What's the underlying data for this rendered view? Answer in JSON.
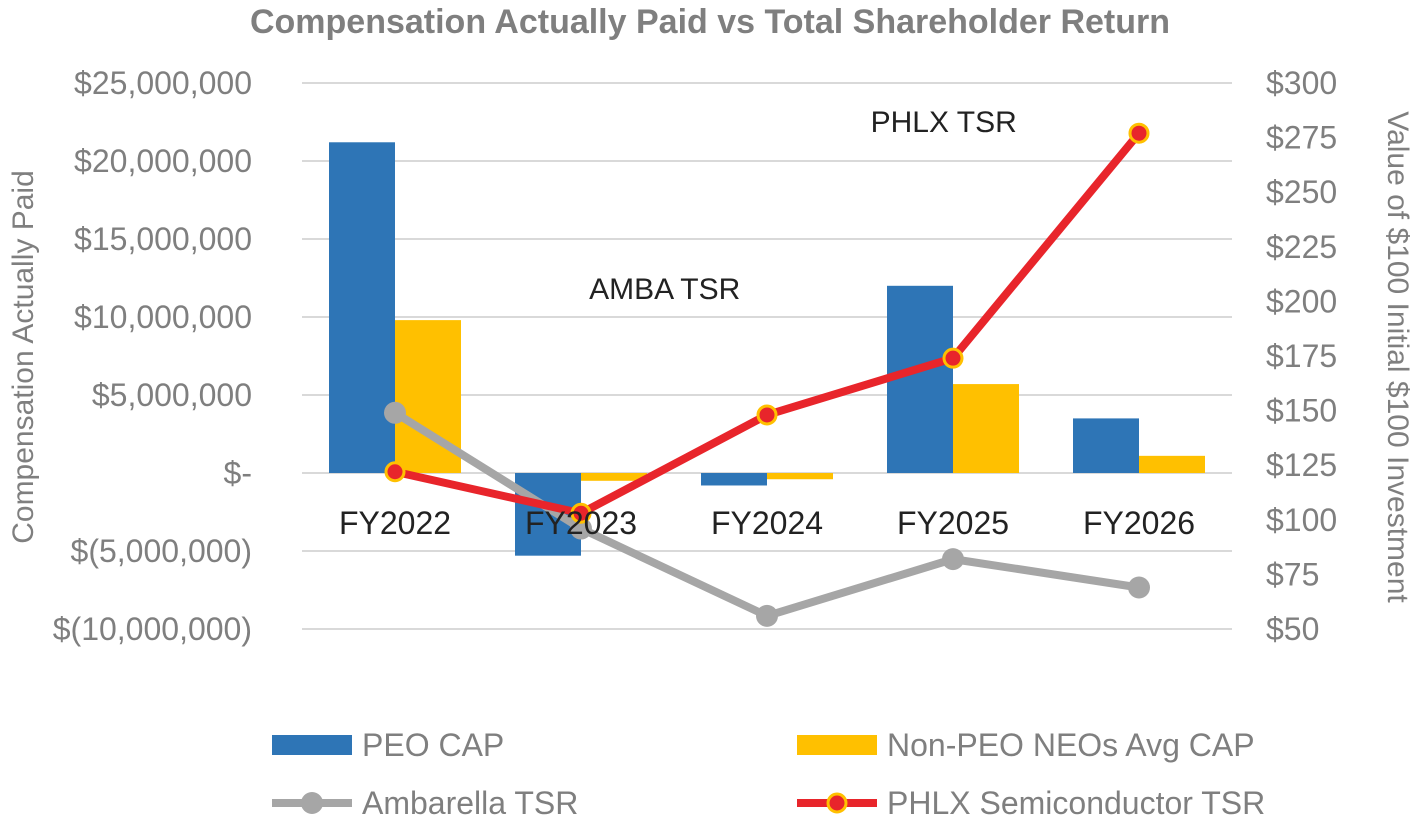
{
  "chart_data": {
    "type": "bar",
    "title": "Compensation Actually Paid vs Total Shareholder Return",
    "categories": [
      "FY2022",
      "FY2023",
      "FY2024",
      "FY2025",
      "FY2026"
    ],
    "ylabel": "Compensation Actually Paid",
    "y2label": "Value of $100 Initial $100 Investment",
    "ylim": [
      -10000000,
      25000000
    ],
    "y2lim": [
      50,
      300
    ],
    "yticks": [
      "$25,000,000",
      "$20,000,000",
      "$15,000,000",
      "$10,000,000",
      "$5,000,000",
      "$-",
      "$(5,000,000)",
      "$(10,000,000)"
    ],
    "y2ticks": [
      "$300",
      "$275",
      "$250",
      "$225",
      "$200",
      "$175",
      "$150",
      "$125",
      "$100",
      "$75",
      "$50"
    ],
    "grid": true,
    "legend_position": "bottom",
    "series": [
      {
        "name": "PEO CAP",
        "kind": "bar",
        "axis": "left",
        "color": "#2e75b6",
        "values": [
          21200000,
          -5300000,
          -800000,
          12000000,
          3500000
        ]
      },
      {
        "name": "Non-PEO NEOs Avg CAP",
        "kind": "bar",
        "axis": "left",
        "color": "#ffc000",
        "values": [
          9800000,
          -500000,
          -400000,
          5700000,
          1100000
        ]
      },
      {
        "name": "Ambarella TSR",
        "kind": "line",
        "axis": "right",
        "color": "#a6a6a6",
        "values": [
          149,
          96,
          56,
          82,
          69
        ]
      },
      {
        "name": "PHLX Semiconductor TSR",
        "kind": "line",
        "axis": "right",
        "color": "#e8252b",
        "marker_fill": "#e8252b",
        "marker_edge": "#ffc000",
        "values": [
          122,
          103,
          148,
          174,
          277
        ]
      }
    ],
    "annotations": [
      {
        "text": "AMBA TSR",
        "category_index": 1.45,
        "y": 11800000
      },
      {
        "text": "PHLX TSR",
        "category_index": 2.95,
        "y": 22500000
      }
    ]
  }
}
